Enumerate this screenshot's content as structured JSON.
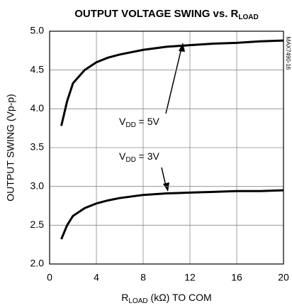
{
  "chart_data": {
    "type": "line",
    "title": [
      "OUTPUT VOLTAGE SWING vs. R",
      "LOAD"
    ],
    "x_label": [
      "R",
      "LOAD",
      " (kΩ) TO COM"
    ],
    "y_label": "OUTPUT SWING (Vp-p)",
    "side_note": "MAX7490-16",
    "annotations": [
      [
        "V",
        "DD",
        " = 5V"
      ],
      [
        "V",
        "DD",
        " = 3V"
      ]
    ],
    "xlim": [
      0,
      20
    ],
    "xticks": [
      0,
      4,
      8,
      12,
      16,
      20
    ],
    "ylim": [
      2.0,
      5.0
    ],
    "yticks": [
      {
        "value": 2.0,
        "label": "2.0"
      },
      {
        "value": 2.5,
        "label": "2.5"
      },
      {
        "value": 3.0,
        "label": "3.0"
      },
      {
        "value": 3.5,
        "label": "3.5"
      },
      {
        "value": 4.0,
        "label": "4.0"
      },
      {
        "value": 4.5,
        "label": "4.5"
      },
      {
        "value": 5.0,
        "label": "5.0"
      }
    ],
    "grid": true,
    "series": [
      {
        "color": "#000000",
        "x": [
          1,
          1.5,
          2,
          3,
          4,
          5,
          6,
          8,
          10,
          12,
          14,
          16,
          18,
          20
        ],
        "values": [
          3.78,
          4.1,
          4.33,
          4.5,
          4.6,
          4.66,
          4.7,
          4.76,
          4.8,
          4.82,
          4.84,
          4.85,
          4.87,
          4.88
        ]
      },
      {
        "color": "#000000",
        "x": [
          1,
          1.5,
          2,
          3,
          4,
          5,
          6,
          8,
          10,
          12,
          14,
          16,
          18,
          20
        ],
        "values": [
          2.32,
          2.5,
          2.62,
          2.72,
          2.78,
          2.82,
          2.85,
          2.89,
          2.91,
          2.92,
          2.93,
          2.94,
          2.94,
          2.95
        ]
      }
    ]
  }
}
